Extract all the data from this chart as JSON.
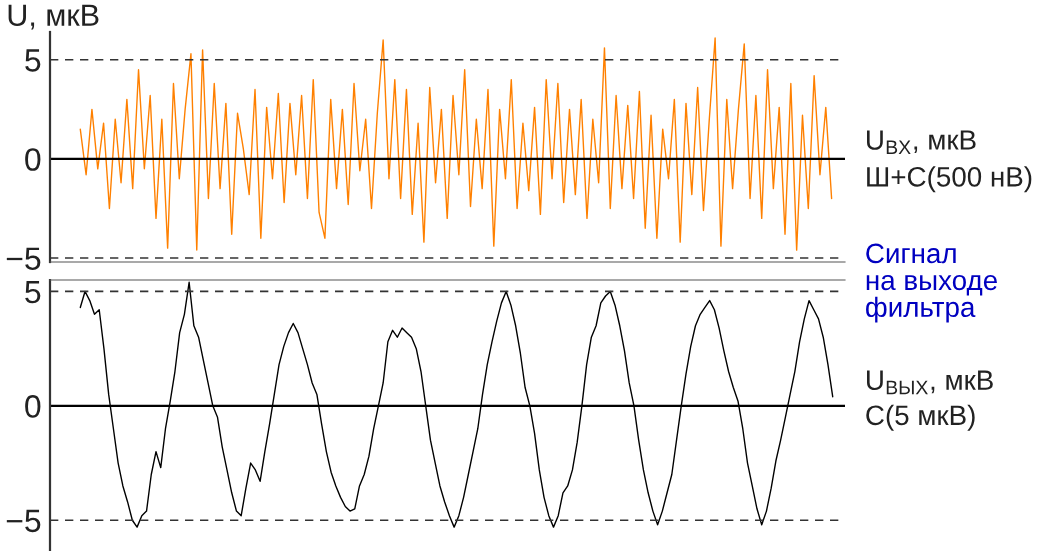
{
  "chart_data": [
    {
      "type": "line",
      "ylabel": "U, мкВ",
      "annotations": [
        "U$_{ВХ}$, мкВ",
        "Ш+С(500 нВ)"
      ],
      "categories": [
        null,
        null,
        null,
        null,
        null,
        null,
        null,
        null,
        null,
        null,
        null,
        null,
        null,
        null,
        null,
        null,
        null,
        null,
        null,
        null,
        null,
        null,
        null,
        null,
        null,
        null,
        null,
        null,
        null,
        null,
        null,
        null,
        null,
        null,
        null,
        null,
        null,
        null,
        null,
        null,
        null,
        null,
        null,
        null,
        null,
        null,
        null,
        null,
        null,
        null,
        null,
        null,
        null,
        null,
        null,
        null,
        null,
        null,
        null,
        null,
        null,
        null,
        null,
        null,
        null,
        null,
        null,
        null,
        null,
        null,
        null,
        null,
        null,
        null,
        null,
        null,
        null,
        null,
        null,
        null,
        null,
        null,
        null,
        null,
        null,
        null,
        null,
        null,
        null,
        null,
        null,
        null,
        null,
        null,
        null,
        null,
        null,
        null,
        null,
        null,
        null,
        null,
        null,
        null,
        null,
        null,
        null,
        null,
        null,
        null,
        null,
        null,
        null,
        null,
        null,
        null,
        null,
        null,
        null,
        null,
        null,
        null,
        null,
        null,
        null,
        null,
        null,
        null,
        null,
        null
      ],
      "series": [
        {
          "color": "#ff8000",
          "values": [
            1.5,
            -0.8,
            2.5,
            -0.5,
            1.8,
            -2.5,
            2.0,
            -1.2,
            3.0,
            -1.5,
            4.5,
            -0.5,
            3.2,
            -3.0,
            2.0,
            -4.5,
            3.8,
            -1.0,
            2.5,
            5.3,
            -4.6,
            5.5,
            -2.0,
            3.8,
            -1.5,
            2.8,
            -3.8,
            2.3,
            0.5,
            -1.8,
            3.5,
            -4.0,
            2.6,
            -1.0,
            3.3,
            -2.2,
            2.8,
            -0.8,
            3.2,
            -2.0,
            4.0,
            -2.7,
            -4.0,
            3.0,
            -1.5,
            2.5,
            -2.3,
            3.8,
            -0.6,
            2.0,
            -2.5,
            2.3,
            6.0,
            -1.0,
            4.0,
            -2.0,
            3.5,
            -2.8,
            1.8,
            -4.2,
            3.6,
            -1.2,
            2.5,
            -3.0,
            3.2,
            -0.8,
            4.5,
            -2.4,
            2.0,
            -1.5,
            3.5,
            -4.4,
            2.5,
            -1.0,
            4.0,
            -2.5,
            1.8,
            -1.6,
            2.6,
            -2.8,
            4.0,
            -1.0,
            3.8,
            -2.2,
            2.5,
            -1.8,
            3.0,
            -3.0,
            2.0,
            -1.2,
            5.6,
            -2.5,
            3.2,
            -1.5,
            2.7,
            -2.0,
            3.4,
            -3.5,
            2.2,
            -4.0,
            1.5,
            -1.0,
            3.0,
            -4.2,
            2.8,
            -1.8,
            3.6,
            -2.6,
            2.0,
            6.1,
            -4.4,
            3.0,
            -1.5,
            2.5,
            5.8,
            -2.0,
            3.2,
            -3.0,
            4.5,
            -1.5,
            2.6,
            -3.8,
            3.8,
            -4.6,
            2.2,
            -2.5,
            4.2,
            -0.8,
            2.6,
            -2.0
          ]
        }
      ],
      "ylim": [
        -5.2,
        6.4
      ],
      "yticks": [
        {
          "value": -5,
          "label": "−5"
        },
        0,
        5
      ],
      "ref_lines": [
        {
          "axis": "y",
          "value": 5,
          "line_style": "dashed",
          "color": "#333333"
        },
        {
          "axis": "y",
          "value": -5,
          "line_style": "dashed",
          "color": "#333333"
        },
        {
          "axis": "y",
          "value": 0,
          "line_style": "solid",
          "color": "#000000"
        }
      ]
    },
    {
      "type": "line",
      "annotations": [
        "Сигнал\nна выходе\nфильтра",
        "U$_{ВЫХ}$, мкВ",
        "С(5 мкВ)"
      ],
      "categories": [
        null,
        null,
        null,
        null,
        null,
        null,
        null,
        null,
        null,
        null,
        null,
        null,
        null,
        null,
        null,
        null,
        null,
        null,
        null,
        null,
        null,
        null,
        null,
        null,
        null,
        null,
        null,
        null,
        null,
        null,
        null,
        null,
        null,
        null,
        null,
        null,
        null,
        null,
        null,
        null,
        null,
        null,
        null,
        null,
        null,
        null,
        null,
        null,
        null,
        null,
        null,
        null,
        null,
        null,
        null,
        null,
        null,
        null,
        null,
        null,
        null,
        null,
        null,
        null,
        null,
        null,
        null,
        null,
        null,
        null,
        null,
        null,
        null,
        null,
        null,
        null,
        null,
        null,
        null,
        null,
        null,
        null,
        null,
        null,
        null,
        null,
        null,
        null,
        null,
        null,
        null,
        null,
        null,
        null,
        null,
        null,
        null,
        null,
        null,
        null,
        null,
        null,
        null,
        null,
        null,
        null,
        null,
        null,
        null,
        null,
        null,
        null,
        null,
        null,
        null,
        null,
        null,
        null,
        null,
        null,
        null,
        null,
        null,
        null,
        null,
        null,
        null,
        null,
        null,
        null,
        null,
        null,
        null,
        null,
        null,
        null,
        null,
        null,
        null,
        null,
        null,
        null,
        null,
        null,
        null,
        null,
        null,
        null,
        null,
        null,
        null,
        null,
        null,
        null,
        null,
        null,
        null,
        null,
        null,
        null
      ],
      "series": [
        {
          "color": "#000000",
          "values": [
            4.3,
            5.0,
            4.6,
            4.0,
            4.2,
            2.5,
            0.5,
            -1.0,
            -2.5,
            -3.5,
            -4.2,
            -5.0,
            -5.3,
            -4.8,
            -4.6,
            -3.0,
            -2.0,
            -2.7,
            -1.0,
            0.2,
            1.5,
            3.2,
            4.0,
            5.4,
            3.5,
            3.0,
            2.0,
            1.0,
            0.0,
            -0.5,
            -1.8,
            -2.8,
            -3.8,
            -4.6,
            -4.8,
            -3.6,
            -2.5,
            -2.8,
            -3.3,
            -2.0,
            -0.8,
            0.5,
            1.8,
            2.6,
            3.2,
            3.6,
            3.2,
            2.5,
            1.8,
            1.0,
            0.5,
            -0.8,
            -2.0,
            -2.9,
            -3.5,
            -4.0,
            -4.4,
            -4.6,
            -4.5,
            -3.5,
            -3.0,
            -2.2,
            -1.0,
            0.0,
            1.0,
            2.8,
            3.3,
            3.0,
            3.4,
            3.2,
            3.0,
            2.5,
            1.5,
            0.0,
            -1.5,
            -2.5,
            -3.5,
            -4.2,
            -4.8,
            -5.3,
            -4.8,
            -4.0,
            -3.0,
            -2.0,
            -1.0,
            0.5,
            1.8,
            2.8,
            3.7,
            4.5,
            5.0,
            4.4,
            3.5,
            2.3,
            0.8,
            0.0,
            -1.2,
            -2.8,
            -4.0,
            -4.8,
            -5.3,
            -4.8,
            -3.8,
            -3.5,
            -2.8,
            -1.6,
            0.0,
            1.8,
            3.0,
            3.5,
            4.5,
            4.8,
            5.0,
            4.4,
            3.5,
            2.4,
            1.0,
            0.0,
            -1.5,
            -2.8,
            -3.8,
            -4.6,
            -5.2,
            -4.6,
            -3.8,
            -3.0,
            -1.5,
            0.0,
            1.4,
            2.6,
            3.5,
            4.0,
            4.3,
            4.6,
            4.2,
            3.4,
            2.4,
            1.5,
            0.8,
            0.2,
            -1.0,
            -2.5,
            -3.5,
            -4.5,
            -5.2,
            -4.6,
            -3.6,
            -2.4,
            -1.5,
            -0.5,
            0.5,
            1.5,
            2.8,
            3.8,
            4.6,
            4.2,
            3.8,
            3.0,
            1.8,
            0.4
          ]
        }
      ],
      "ylim": [
        -6.3,
        5.5
      ],
      "yticks": [
        {
          "value": -5,
          "label": "−5"
        },
        0,
        5
      ],
      "ref_lines": [
        {
          "axis": "y",
          "value": 5,
          "line_style": "dashed",
          "color": "#333333"
        },
        {
          "axis": "y",
          "value": -5,
          "line_style": "dashed",
          "color": "#333333"
        },
        {
          "axis": "y",
          "value": 0,
          "line_style": "solid",
          "color": "#000000"
        }
      ]
    }
  ]
}
